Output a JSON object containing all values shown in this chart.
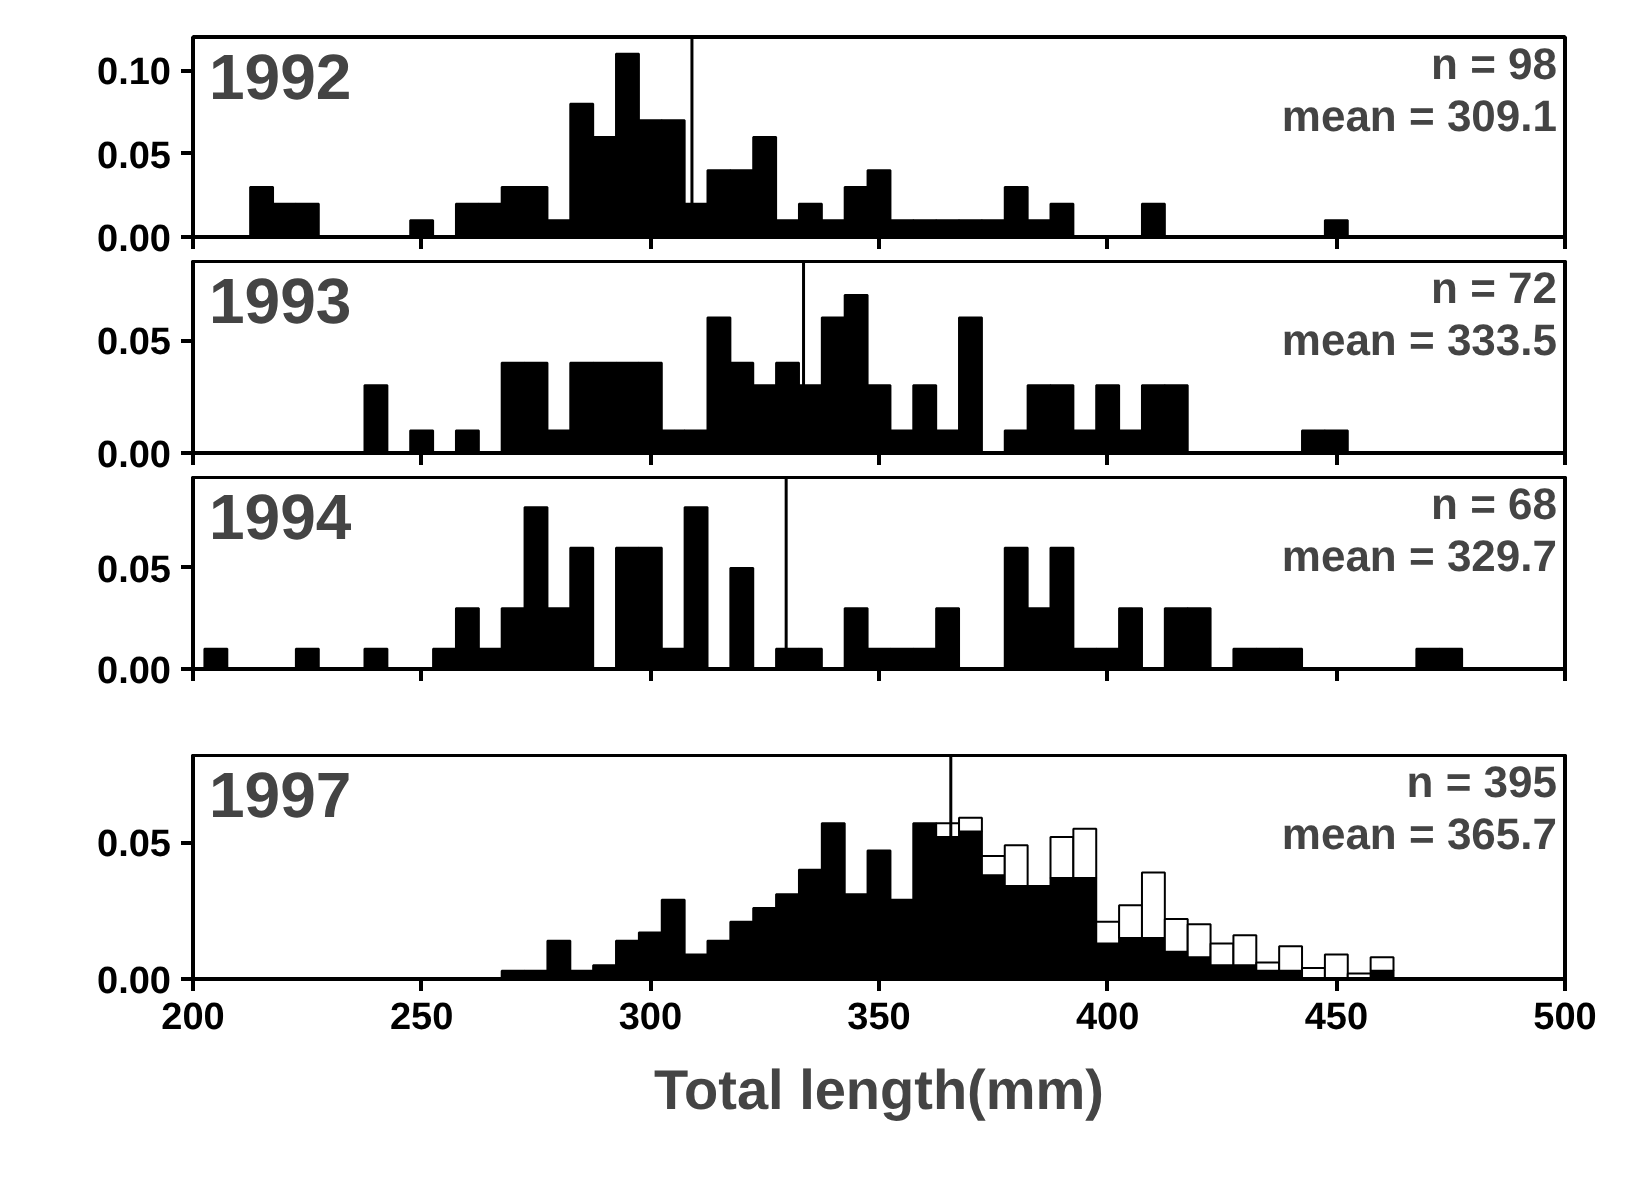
{
  "chart_data": [
    {
      "type": "histogram",
      "title": "1992",
      "annotations": [
        "n = 98",
        "mean = 309.1"
      ],
      "color": "#000000",
      "bins": [
        212.5,
        217.5,
        222.5,
        227.5,
        232.5,
        237.5,
        242.5,
        247.5,
        252.5,
        257.5,
        262.5,
        267.5,
        272.5,
        277.5,
        282.5,
        287.5,
        292.5,
        297.5,
        302.5,
        307.5,
        312.5,
        317.5,
        322.5,
        327.5,
        332.5,
        337.5,
        342.5,
        347.5,
        352.5,
        357.5,
        362.5,
        367.5,
        372.5,
        377.5,
        382.5,
        387.5,
        392.5,
        397.5,
        402.5,
        407.5,
        412.5,
        417.5,
        422.5,
        427.5,
        432.5,
        437.5,
        442.5,
        447.5,
        452.5
      ],
      "values": [
        0.03,
        0.02,
        0.02,
        0,
        0,
        0,
        0,
        0.01,
        0,
        0.02,
        0.02,
        0.03,
        0.03,
        0.01,
        0.08,
        0.06,
        0.11,
        0.07,
        0.07,
        0.02,
        0.04,
        0.04,
        0.06,
        0.01,
        0.02,
        0.01,
        0.03,
        0.04,
        0.01,
        0.01,
        0.01,
        0.01,
        0.01,
        0.03,
        0.01,
        0.02,
        0,
        0,
        0,
        0.02,
        0,
        0,
        0,
        0,
        0,
        0,
        0,
        0.01
      ],
      "xlim": [
        200,
        500
      ],
      "xticks": [
        200,
        250,
        300,
        350,
        400,
        450,
        500
      ],
      "ylim": [
        0,
        0.12
      ],
      "yticks": [
        {
          "value": 0,
          "label": "0.00"
        },
        {
          "value": 0.05,
          "label": "0.05"
        },
        {
          "value": 0.1,
          "label": "0.10"
        }
      ],
      "ref_lines": [
        {
          "axis": "x",
          "value": 309.1
        }
      ],
      "tick_labels": "y"
    },
    {
      "type": "histogram",
      "title": "1993",
      "annotations": [
        "n = 72",
        "mean = 333.5"
      ],
      "color": "#000000",
      "bins": [
        237.5,
        242.5,
        247.5,
        252.5,
        257.5,
        262.5,
        267.5,
        272.5,
        277.5,
        282.5,
        287.5,
        292.5,
        297.5,
        302.5,
        307.5,
        312.5,
        317.5,
        322.5,
        327.5,
        332.5,
        337.5,
        342.5,
        347.5,
        352.5,
        357.5,
        362.5,
        367.5,
        372.5,
        377.5,
        382.5,
        387.5,
        392.5,
        397.5,
        402.5,
        407.5,
        412.5,
        417.5,
        422.5,
        427.5,
        432.5,
        437.5,
        442.5,
        447.5,
        452.5
      ],
      "values": [
        0.03,
        0,
        0.01,
        0,
        0.01,
        0,
        0.04,
        0.04,
        0.01,
        0.04,
        0.04,
        0.04,
        0.04,
        0.01,
        0.01,
        0.06,
        0.04,
        0.03,
        0.04,
        0.03,
        0.06,
        0.07,
        0.03,
        0.01,
        0.03,
        0.01,
        0.06,
        0,
        0.01,
        0.03,
        0.03,
        0.01,
        0.03,
        0.01,
        0.03,
        0.03,
        0,
        0,
        0,
        0,
        0,
        0.01,
        0.01
      ],
      "xlim": [
        200,
        500
      ],
      "xticks": [
        200,
        250,
        300,
        350,
        400,
        450,
        500
      ],
      "ylim": [
        0,
        0.085
      ],
      "yticks": [
        {
          "value": 0,
          "label": "0.00"
        },
        {
          "value": 0.05,
          "label": "0.05"
        }
      ],
      "ref_lines": [
        {
          "axis": "x",
          "value": 333.5
        }
      ],
      "tick_labels": "y"
    },
    {
      "type": "histogram",
      "title": "1994",
      "annotations": [
        "n = 68",
        "mean = 329.7"
      ],
      "color": "#000000",
      "bins": [
        202.5,
        207.5,
        212.5,
        217.5,
        222.5,
        227.5,
        232.5,
        237.5,
        242.5,
        247.5,
        252.5,
        257.5,
        262.5,
        267.5,
        272.5,
        277.5,
        282.5,
        287.5,
        292.5,
        297.5,
        302.5,
        307.5,
        312.5,
        317.5,
        322.5,
        327.5,
        332.5,
        337.5,
        342.5,
        347.5,
        352.5,
        357.5,
        362.5,
        367.5,
        372.5,
        377.5,
        382.5,
        387.5,
        392.5,
        397.5,
        402.5,
        407.5,
        412.5,
        417.5,
        422.5,
        427.5,
        432.5,
        437.5,
        442.5,
        447.5,
        452.5,
        457.5,
        462.5,
        467.5,
        472.5,
        477.5
      ],
      "values": [
        0.01,
        0,
        0,
        0,
        0.01,
        0,
        0,
        0.01,
        0,
        0,
        0.01,
        0.03,
        0.01,
        0.03,
        0.08,
        0.03,
        0.06,
        0,
        0.06,
        0.06,
        0.01,
        0.08,
        0,
        0.05,
        0,
        0.01,
        0.01,
        0,
        0.03,
        0.01,
        0.01,
        0.01,
        0.03,
        0,
        0,
        0.06,
        0.03,
        0.06,
        0.01,
        0.01,
        0.03,
        0,
        0.03,
        0.03,
        0,
        0.01,
        0.01,
        0.01,
        0,
        0,
        0,
        0,
        0,
        0.01,
        0.01
      ],
      "xlim": [
        200,
        500
      ],
      "xticks": [
        200,
        250,
        300,
        350,
        400,
        450,
        500
      ],
      "ylim": [
        0,
        0.095
      ],
      "yticks": [
        {
          "value": 0,
          "label": "0.00"
        },
        {
          "value": 0.05,
          "label": "0.05"
        }
      ],
      "ref_lines": [
        {
          "axis": "x",
          "value": 329.7
        }
      ],
      "tick_labels": "y"
    },
    {
      "type": "bar",
      "title": "1997",
      "annotations": [
        "n = 395",
        "mean = 365.7"
      ],
      "xlabel": "Total length(mm)",
      "stacked": true,
      "x": [
        270,
        275,
        280,
        285,
        290,
        295,
        300,
        305,
        310,
        315,
        320,
        325,
        330,
        335,
        340,
        345,
        350,
        355,
        360,
        365,
        370,
        375,
        380,
        385,
        390,
        395,
        400,
        405,
        410,
        415,
        420,
        425,
        430,
        435,
        440,
        445,
        450,
        455,
        460
      ],
      "series": [
        {
          "color": "#000000",
          "values": [
            0.003,
            0.003,
            0.014,
            0.003,
            0.005,
            0.014,
            0.017,
            0.029,
            0.009,
            0.014,
            0.021,
            0.026,
            0.031,
            0.04,
            0.057,
            0.031,
            0.047,
            0.029,
            0.057,
            0.052,
            0.054,
            0.038,
            0.034,
            0.034,
            0.037,
            0.037,
            0.013,
            0.015,
            0.015,
            0.01,
            0.008,
            0.005,
            0.005,
            0.003,
            0.003,
            null,
            null,
            null,
            0.003
          ]
        },
        {
          "color": "#ffffff",
          "values": [
            0,
            0,
            0,
            0,
            0,
            0,
            0,
            0,
            0,
            0,
            0,
            0,
            0,
            0,
            0,
            0,
            0,
            0,
            0,
            0.005,
            0.005,
            0.007,
            0.015,
            0,
            0.015,
            0.018,
            0.008,
            0.012,
            0.024,
            0.012,
            0.012,
            0.008,
            0.011,
            0.003,
            0.009,
            0.004,
            0.009,
            0.002,
            0.005
          ]
        }
      ],
      "xlim": [
        200,
        500
      ],
      "xticks": [
        200,
        250,
        300,
        350,
        400,
        450,
        500
      ],
      "ylim": [
        0,
        0.082
      ],
      "yticks": [
        {
          "value": 0,
          "label": "0.00"
        },
        {
          "value": 0.05,
          "label": "0.05"
        }
      ],
      "ref_lines": [
        {
          "axis": "x",
          "value": 365.7
        }
      ]
    }
  ]
}
